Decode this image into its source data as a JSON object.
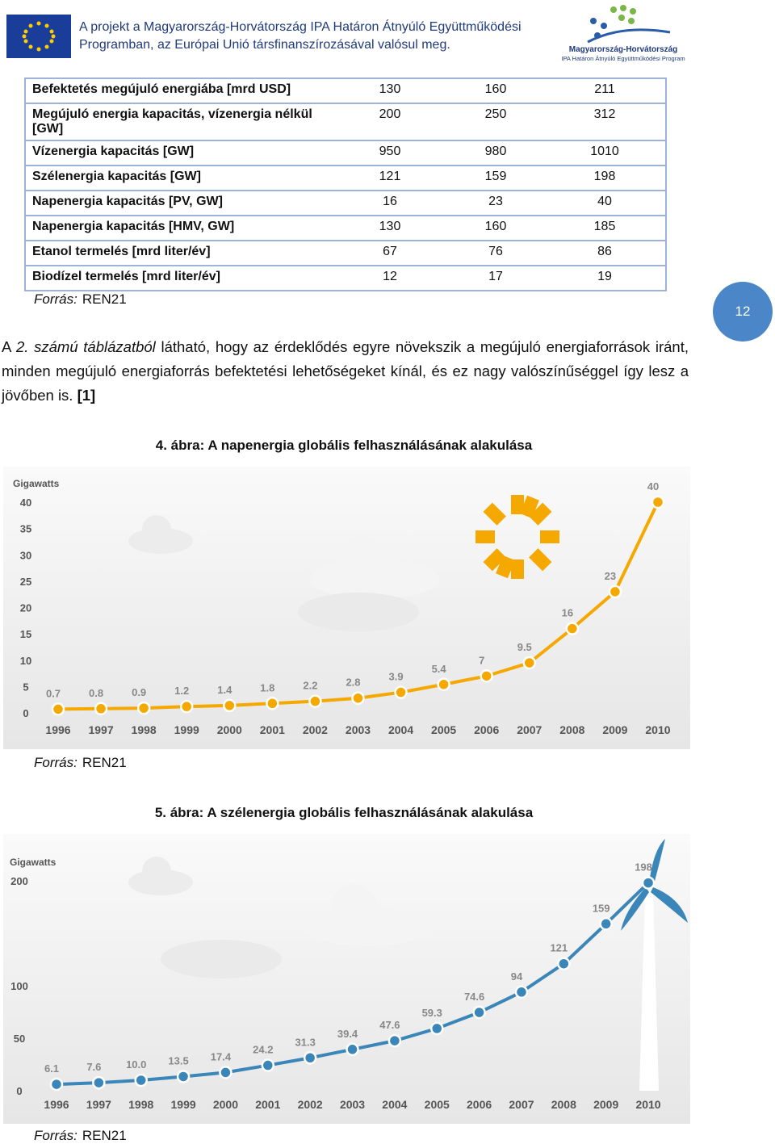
{
  "header": {
    "project_lines": [
      "A projekt a Magyarország-Horvátország IPA Határon Átnyúló Együttműködési",
      "Programban, az Európai Unió társfinanszírozásával valósul meg."
    ],
    "logo_title": "Magyarország-Horvátország",
    "logo_subtitle": "IPA Határon Átnyúló Együttműködési Program"
  },
  "table": {
    "rows": [
      [
        "Befektetés megújuló energiába [mrd USD]",
        130,
        160,
        211
      ],
      [
        "Megújuló energia kapacitás, vízenergia nélkül [GW]",
        200,
        250,
        312
      ],
      [
        "Vízenergia kapacitás [GW]",
        950,
        980,
        1010
      ],
      [
        "Szélenergia kapacitás [GW]",
        121,
        159,
        198
      ],
      [
        "Napenergia kapacitás [PV, GW]",
        16,
        23,
        40
      ],
      [
        "Napenergia kapacitás [HMV, GW]",
        130,
        160,
        185
      ],
      [
        "Etanol termelés [mrd liter/év]",
        67,
        76,
        86
      ],
      [
        "Biodízel termelés [mrd liter/év]",
        12,
        17,
        19
      ]
    ],
    "source_label": "Forrás:",
    "source": "REN21"
  },
  "page_number": "12",
  "paragraph": {
    "intro": "A",
    "reference": "2. számú táblázatból",
    "body": "látható, hogy az érdeklődés egyre növekszik a megújuló energiaforrások iránt, minden megújuló energiaforrás befektetési lehetőségeket kínál, és ez nagy valószínűséggel így lesz a jövőben is.",
    "citation": "[1]"
  },
  "figures": [
    {
      "caption": "4. ábra: A napenergia globális felhasználásának alakulása",
      "source_label": "Forrás:",
      "source": "REN21"
    },
    {
      "caption": "5. ábra: A szélenergia globális felhasználásának alakulása",
      "source_label": "Forrás:",
      "source": "REN21"
    }
  ],
  "chart_data": [
    {
      "type": "line",
      "y_label": "Gigawatts",
      "categories": [
        "1996",
        "1997",
        "1998",
        "1999",
        "2000",
        "2001",
        "2002",
        "2003",
        "2004",
        "2005",
        "2006",
        "2007",
        "2008",
        "2009",
        "2010"
      ],
      "values": [
        0.7,
        0.8,
        0.9,
        1.2,
        1.4,
        1.8,
        2.2,
        2.8,
        3.9,
        5.4,
        7,
        9.5,
        16,
        23,
        40
      ],
      "color": "#f5a800",
      "ylim": [
        0,
        40
      ],
      "yticks": [
        0,
        5,
        10,
        15,
        20,
        25,
        30,
        35,
        40
      ]
    },
    {
      "type": "line",
      "y_label": "Gigawatts",
      "categories": [
        "1996",
        "1997",
        "1998",
        "1999",
        "2000",
        "2001",
        "2002",
        "2003",
        "2004",
        "2005",
        "2006",
        "2007",
        "2008",
        "2009",
        "2010"
      ],
      "values": [
        6.1,
        7.6,
        10.0,
        13.5,
        17.4,
        24.2,
        31.3,
        39.4,
        47.6,
        59.3,
        74.6,
        94,
        121,
        159,
        198
      ],
      "value_labels": [
        "6.1",
        "7.6",
        "10.0",
        "13.5",
        "17.4",
        "24.2",
        "31.3",
        "39.4",
        "47.6",
        "59.3",
        "74.6",
        "94",
        "121",
        "159",
        "198"
      ],
      "color": "#3a86b8",
      "ylim": [
        0,
        200
      ],
      "yticks": [
        0,
        50,
        100,
        200
      ]
    }
  ]
}
